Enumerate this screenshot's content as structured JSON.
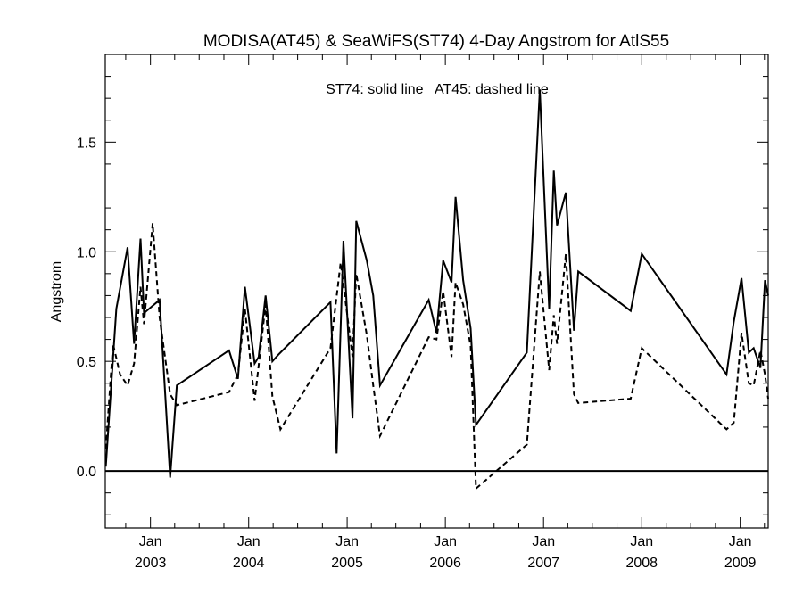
{
  "chart_data": {
    "type": "line",
    "title": "MODISA(AT45) & SeaWiFS(ST74) 4-Day Angstrom for AtlS55",
    "annotation": "ST74: solid line   AT45: dashed line",
    "xlabel": "",
    "ylabel": "Angstrom",
    "x_ticks": [
      {
        "top": "Jan",
        "bottom": "2003",
        "x": "2003-01-01"
      },
      {
        "top": "Jan",
        "bottom": "2004",
        "x": "2004-01-01"
      },
      {
        "top": "Jan",
        "bottom": "2005",
        "x": "2005-01-01"
      },
      {
        "top": "Jan",
        "bottom": "2006",
        "x": "2006-01-01"
      },
      {
        "top": "Jan",
        "bottom": "2007",
        "x": "2007-01-01"
      },
      {
        "top": "Jan",
        "bottom": "2008",
        "x": "2008-01-01"
      },
      {
        "top": "Jan",
        "bottom": "2009",
        "x": "2009-01-01"
      }
    ],
    "xlim": [
      "2002-07-17",
      "2009-04-15"
    ],
    "y_ticks": [
      "0.0",
      "0.5",
      "1.0",
      "1.5"
    ],
    "ylim": [
      -0.26,
      1.9
    ],
    "reference_line": 0.0,
    "series": [
      {
        "name": "ST74",
        "style": "solid",
        "points": [
          [
            "2002-07-19",
            0.02
          ],
          [
            "2002-08-27",
            0.74
          ],
          [
            "2002-10-08",
            1.02
          ],
          [
            "2002-11-01",
            0.58
          ],
          [
            "2002-11-25",
            1.06
          ],
          [
            "2002-12-08",
            0.72
          ],
          [
            "2003-02-04",
            0.78
          ],
          [
            "2003-03-15",
            -0.03
          ],
          [
            "2003-04-09",
            0.39
          ],
          [
            "2003-10-20",
            0.55
          ],
          [
            "2003-11-22",
            0.42
          ],
          [
            "2003-12-18",
            0.84
          ],
          [
            "2004-01-23",
            0.49
          ],
          [
            "2004-02-07",
            0.52
          ],
          [
            "2004-03-04",
            0.8
          ],
          [
            "2004-03-29",
            0.5
          ],
          [
            "2004-04-20",
            0.53
          ],
          [
            "2004-10-31",
            0.77
          ],
          [
            "2004-11-23",
            0.08
          ],
          [
            "2004-12-18",
            1.05
          ],
          [
            "2005-01-21",
            0.24
          ],
          [
            "2005-02-04",
            1.14
          ],
          [
            "2005-03-15",
            0.96
          ],
          [
            "2005-04-08",
            0.8
          ],
          [
            "2005-05-03",
            0.39
          ],
          [
            "2005-10-31",
            0.78
          ],
          [
            "2005-11-29",
            0.63
          ],
          [
            "2005-12-24",
            0.96
          ],
          [
            "2006-01-24",
            0.86
          ],
          [
            "2006-02-08",
            1.25
          ],
          [
            "2006-03-08",
            0.87
          ],
          [
            "2006-04-05",
            0.65
          ],
          [
            "2006-04-25",
            0.21
          ],
          [
            "2006-10-31",
            0.54
          ],
          [
            "2006-12-18",
            1.74
          ],
          [
            "2007-01-22",
            0.74
          ],
          [
            "2007-02-08",
            1.37
          ],
          [
            "2007-02-20",
            1.12
          ],
          [
            "2007-03-25",
            1.27
          ],
          [
            "2007-04-24",
            0.64
          ],
          [
            "2007-05-10",
            0.91
          ],
          [
            "2007-11-21",
            0.73
          ],
          [
            "2008-01-01",
            0.99
          ],
          [
            "2008-11-11",
            0.44
          ],
          [
            "2008-12-08",
            0.68
          ],
          [
            "2009-01-06",
            0.88
          ],
          [
            "2009-02-02",
            0.54
          ],
          [
            "2009-02-20",
            0.56
          ],
          [
            "2009-03-17",
            0.47
          ],
          [
            "2009-04-03",
            0.87
          ],
          [
            "2009-04-15",
            0.8
          ]
        ]
      },
      {
        "name": "AT45",
        "style": "dashed",
        "points": [
          [
            "2002-07-19",
            0.1
          ],
          [
            "2002-08-15",
            0.58
          ],
          [
            "2002-09-10",
            0.44
          ],
          [
            "2002-10-08",
            0.39
          ],
          [
            "2002-11-01",
            0.49
          ],
          [
            "2002-11-25",
            0.84
          ],
          [
            "2002-12-08",
            0.67
          ],
          [
            "2003-01-09",
            1.13
          ],
          [
            "2003-02-04",
            0.7
          ],
          [
            "2003-03-15",
            0.35
          ],
          [
            "2003-04-09",
            0.3
          ],
          [
            "2003-10-20",
            0.36
          ],
          [
            "2003-11-22",
            0.44
          ],
          [
            "2003-12-18",
            0.74
          ],
          [
            "2004-01-23",
            0.32
          ],
          [
            "2004-03-04",
            0.76
          ],
          [
            "2004-03-29",
            0.34
          ],
          [
            "2004-04-28",
            0.19
          ],
          [
            "2004-10-31",
            0.56
          ],
          [
            "2004-12-08",
            0.95
          ],
          [
            "2005-01-21",
            0.52
          ],
          [
            "2005-02-04",
            0.9
          ],
          [
            "2005-03-15",
            0.62
          ],
          [
            "2005-04-08",
            0.39
          ],
          [
            "2005-05-03",
            0.16
          ],
          [
            "2005-10-31",
            0.61
          ],
          [
            "2005-11-29",
            0.6
          ],
          [
            "2005-12-24",
            0.82
          ],
          [
            "2006-01-24",
            0.52
          ],
          [
            "2006-02-08",
            0.86
          ],
          [
            "2006-03-08",
            0.76
          ],
          [
            "2006-04-05",
            0.57
          ],
          [
            "2006-04-25",
            -0.08
          ],
          [
            "2006-10-31",
            0.12
          ],
          [
            "2006-12-18",
            0.91
          ],
          [
            "2007-01-22",
            0.46
          ],
          [
            "2007-02-08",
            0.71
          ],
          [
            "2007-02-20",
            0.58
          ],
          [
            "2007-03-25",
            0.99
          ],
          [
            "2007-04-24",
            0.35
          ],
          [
            "2007-05-10",
            0.31
          ],
          [
            "2007-11-21",
            0.33
          ],
          [
            "2008-01-01",
            0.56
          ],
          [
            "2008-11-11",
            0.19
          ],
          [
            "2008-12-08",
            0.22
          ],
          [
            "2009-01-06",
            0.63
          ],
          [
            "2009-02-02",
            0.4
          ],
          [
            "2009-02-20",
            0.39
          ],
          [
            "2009-03-17",
            0.55
          ],
          [
            "2009-04-03",
            0.44
          ],
          [
            "2009-04-15",
            0.33
          ]
        ]
      }
    ]
  }
}
